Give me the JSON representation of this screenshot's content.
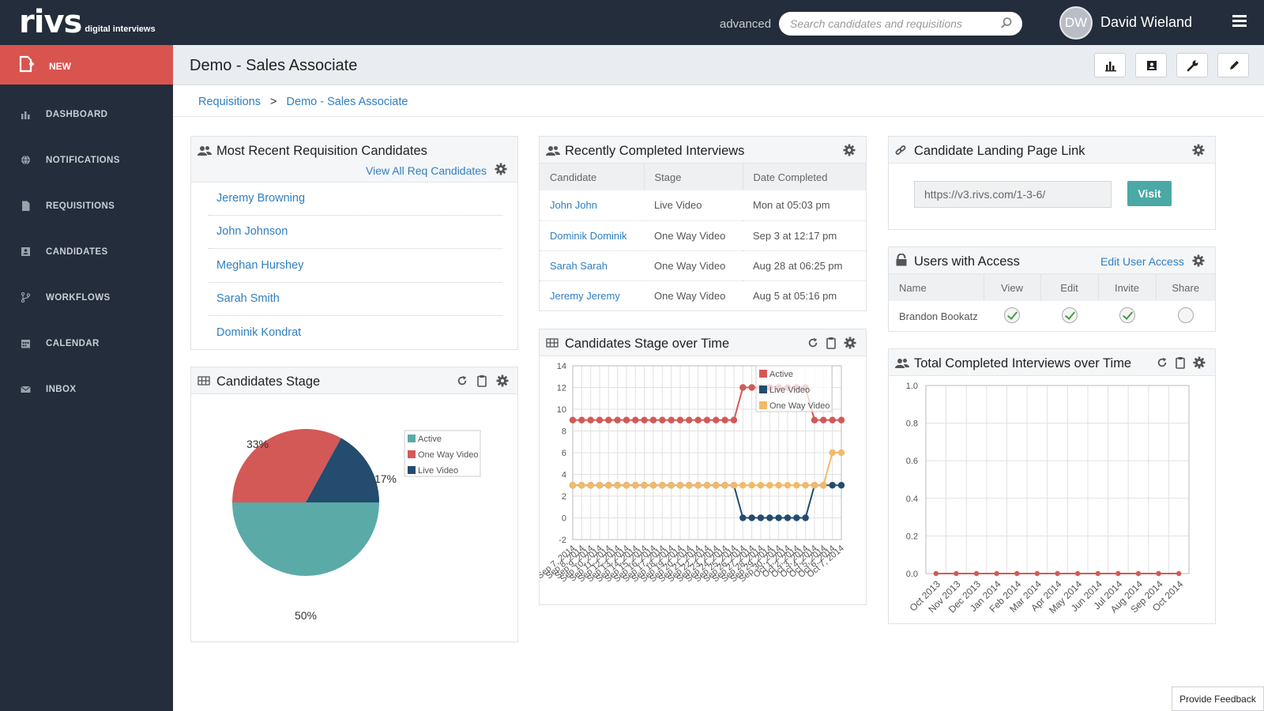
{
  "app": {
    "logo": "rivs",
    "logo_sub": "digital interviews"
  },
  "header": {
    "advanced_label": "advanced",
    "search_placeholder": "Search candidates and requisitions",
    "user_initials": "DW",
    "user_name": "David Wieland"
  },
  "sidebar": {
    "new_label": "NEW",
    "items": [
      {
        "label": "DASHBOARD",
        "icon": "bar-chart-icon"
      },
      {
        "label": "NOTIFICATIONS",
        "icon": "globe-icon"
      },
      {
        "label": "REQUISITIONS",
        "icon": "document-icon"
      },
      {
        "label": "CANDIDATES",
        "icon": "contact-card-icon"
      },
      {
        "label": "WORKFLOWS",
        "icon": "branch-icon"
      },
      {
        "label": "CALENDAR",
        "icon": "calendar-icon"
      },
      {
        "label": "INBOX",
        "icon": "envelope-icon"
      }
    ]
  },
  "page": {
    "title": "Demo - Sales Associate"
  },
  "breadcrumb": {
    "root": "Requisitions",
    "sep": ">",
    "current": "Demo - Sales Associate"
  },
  "recent_candidates": {
    "title": "Most Recent Requisition Candidates",
    "view_all": "View All Req Candidates",
    "items": [
      "Jeremy Browning",
      "John Johnson",
      "Meghan Hurshey",
      "Sarah Smith",
      "Dominik Kondrat"
    ]
  },
  "completed_interviews": {
    "title": "Recently Completed Interviews",
    "columns": [
      "Candidate",
      "Stage",
      "Date Completed"
    ],
    "rows": [
      {
        "candidate": "John John",
        "stage": "Live Video",
        "date": "Mon at 05:03 pm"
      },
      {
        "candidate": "Dominik Dominik",
        "stage": "One Way Video",
        "date": "Sep 3 at 12:17 pm"
      },
      {
        "candidate": "Sarah Sarah",
        "stage": "One Way Video",
        "date": "Aug 28 at 06:25 pm"
      },
      {
        "candidate": "Jeremy Jeremy",
        "stage": "One Way Video",
        "date": "Aug 5 at 05:16 pm"
      }
    ]
  },
  "landing_link": {
    "title": "Candidate Landing Page Link",
    "url": "https://v3.rivs.com/1-3-6/",
    "visit_label": "Visit"
  },
  "users_access": {
    "title": "Users with Access",
    "edit_label": "Edit User Access",
    "columns": [
      "Name",
      "View",
      "Edit",
      "Invite",
      "Share"
    ],
    "rows": [
      {
        "name": "Brandon Bookatz",
        "view": true,
        "edit": true,
        "invite": true,
        "share": false
      }
    ]
  },
  "panels": {
    "stage_title": "Candidates Stage",
    "stage_time_title": "Candidates Stage over Time",
    "total_title": "Total Completed Interviews over Time"
  },
  "chart_data": [
    {
      "type": "pie",
      "title": "Candidates Stage",
      "labels": [
        "Active",
        "One Way Video",
        "Live Video"
      ],
      "values": [
        50,
        33,
        17
      ],
      "value_labels": [
        "50%",
        "33%",
        "17%"
      ],
      "colors": [
        "#5aaaa8",
        "#d35957",
        "#234c6e"
      ],
      "legend": "top-right"
    },
    {
      "type": "line",
      "title": "Candidates Stage over Time",
      "x_tick_labels": [
        "Sep 7, 2014",
        "Sep 8, 2014",
        "Sep 9, 2014",
        "Sep 10, 2014",
        "Sep 11, 2014",
        "Sep 12, 2014",
        "Sep 13, 2014",
        "Sep 14, 2014",
        "Sep 15, 2014",
        "Sep 16, 2014",
        "Sep 17, 2014",
        "Sep 18, 2014",
        "Sep 19, 2014",
        "Sep 20, 2014",
        "Sep 21, 2014",
        "Sep 22, 2014",
        "Sep 23, 2014",
        "Sep 24, 2014",
        "Sep 25, 2014",
        "Sep 26, 2014",
        "Sep 27, 2014",
        "Sep 28, 2014",
        "Sep 29, 2014",
        "Sep 30, 2014",
        "Oct 1, 2014",
        "Oct 2, 2014",
        "Oct 3, 2014",
        "Oct 4, 2014",
        "Oct 5, 2014",
        "Oct 6, 2014",
        "Oct 7, 2014"
      ],
      "ylim": [
        -2,
        14
      ],
      "y_ticks": [
        -2,
        0,
        2,
        4,
        6,
        8,
        10,
        12,
        14
      ],
      "grid": true,
      "legend": "top-right",
      "series": [
        {
          "name": "Active",
          "color": "#d35957",
          "values": [
            9,
            9,
            9,
            9,
            9,
            9,
            9,
            9,
            9,
            9,
            9,
            9,
            9,
            9,
            9,
            9,
            9,
            9,
            9,
            12,
            12,
            12,
            12,
            12,
            12,
            12,
            12,
            9,
            9,
            9,
            9
          ]
        },
        {
          "name": "Live Video",
          "color": "#234c6e",
          "values": [
            3,
            3,
            3,
            3,
            3,
            3,
            3,
            3,
            3,
            3,
            3,
            3,
            3,
            3,
            3,
            3,
            3,
            3,
            3,
            0,
            0,
            0,
            0,
            0,
            0,
            0,
            0,
            3,
            3,
            3,
            3
          ]
        },
        {
          "name": "One Way Video",
          "color": "#f2b968",
          "values": [
            3,
            3,
            3,
            3,
            3,
            3,
            3,
            3,
            3,
            3,
            3,
            3,
            3,
            3,
            3,
            3,
            3,
            3,
            3,
            3,
            3,
            3,
            3,
            3,
            3,
            3,
            3,
            3,
            3,
            6,
            6
          ]
        }
      ]
    },
    {
      "type": "line",
      "title": "Total Completed Interviews over Time",
      "categories": [
        "Oct 2013",
        "Nov 2013",
        "Dec 2013",
        "Jan 2014",
        "Feb 2014",
        "Mar 2014",
        "Apr 2014",
        "May 2014",
        "Jun 2014",
        "Jul 2014",
        "Aug 2014",
        "Sep 2014",
        "Oct 2014"
      ],
      "ylim": [
        0,
        1
      ],
      "y_ticks": [
        "0.0",
        "0.2",
        "0.4",
        "0.6",
        "0.8",
        "1.0"
      ],
      "grid": true,
      "series": [
        {
          "color": "#d35957",
          "values": [
            0,
            0,
            0,
            0,
            0,
            0,
            0,
            0,
            0,
            0,
            0,
            0,
            0
          ]
        }
      ]
    }
  ],
  "feedback_label": "Provide Feedback"
}
